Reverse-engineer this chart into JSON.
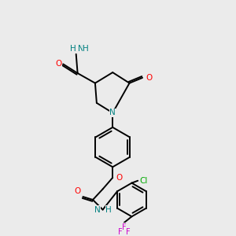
{
  "background_color": "#ebebeb",
  "bond_color": "#000000",
  "colors": {
    "N": "#008080",
    "O": "#ff0000",
    "F": "#cc00cc",
    "Cl": "#00aa00",
    "H": "#008080",
    "C": "#000000"
  },
  "font_size": 7.5,
  "lw": 1.4
}
